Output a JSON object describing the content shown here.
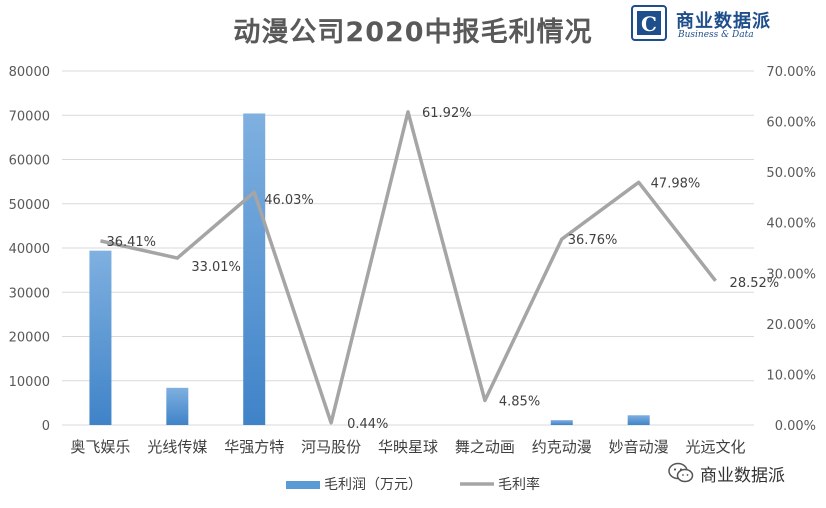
{
  "title": "动漫公司2020中报毛利情况",
  "logo": {
    "letter": "C",
    "name": "商业数据派",
    "subtitle": "Business & Data",
    "color": "#1f4e8c"
  },
  "watermark": {
    "text": "商业数据派",
    "icon": "wechat-icon"
  },
  "chart_data": {
    "type": "bar",
    "categories": [
      "奥飞娱乐",
      "光线传媒",
      "华强方特",
      "河马股份",
      "华映星球",
      "舞之动画",
      "约克动漫",
      "妙音动漫",
      "光远文化"
    ],
    "series": [
      {
        "name": "毛利润（万元）",
        "type": "bar",
        "axis": "left",
        "color": "#5b9bd5",
        "values": [
          39400,
          8400,
          70400,
          0,
          0,
          0,
          1100,
          2200,
          0
        ]
      },
      {
        "name": "毛利率",
        "type": "line",
        "axis": "right",
        "color": "#a5a5a5",
        "values": [
          36.41,
          33.01,
          46.03,
          0.44,
          61.92,
          4.85,
          36.76,
          47.98,
          28.52
        ],
        "labels": [
          "36.41%",
          "33.01%",
          "46.03%",
          "0.44%",
          "61.92%",
          "4.85%",
          "36.76%",
          "47.98%",
          "28.52%"
        ]
      }
    ],
    "y_left": {
      "range": [
        0,
        80000
      ],
      "ticks": [
        "0",
        "10000",
        "20000",
        "30000",
        "40000",
        "50000",
        "60000",
        "70000",
        "80000"
      ]
    },
    "y_right": {
      "range": [
        0,
        70
      ],
      "ticks": [
        "0.00%",
        "10.00%",
        "20.00%",
        "30.00%",
        "40.00%",
        "50.00%",
        "60.00%",
        "70.00%"
      ]
    },
    "grid": true,
    "legend_position": "bottom"
  }
}
